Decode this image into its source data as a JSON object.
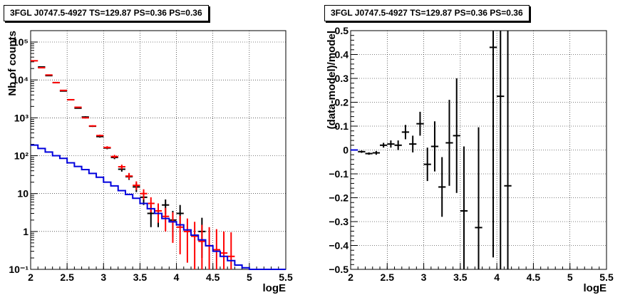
{
  "chart_data": [
    {
      "type": "line",
      "title": "3FGL J0747.5-4927 TS=129.87 PS=0.36 PS=0.36",
      "xlabel": "logE",
      "ylabel": "Nb of counts",
      "xlim": [
        2,
        5.5
      ],
      "ylim": [
        0.1,
        200000
      ],
      "log_y": true,
      "grid": true,
      "x_ticks": [
        "2",
        "2.5",
        "3",
        "3.5",
        "4",
        "4.5",
        "5",
        "5.5"
      ],
      "y_ticks": [
        "10⁻¹",
        "1",
        "10",
        "10²",
        "10³",
        "10⁴",
        "10⁵"
      ],
      "y_tick_values": [
        0.1,
        1,
        10,
        100,
        1000,
        10000,
        100000
      ],
      "series": [
        {
          "color": "#000000",
          "kind": "errorbar",
          "points": [
            {
              "x": 2.15,
              "y": 22000,
              "lo": 21700,
              "hi": 22300
            },
            {
              "x": 2.25,
              "y": 13000,
              "lo": 12800,
              "hi": 13200
            },
            {
              "x": 2.35,
              "y": 8500,
              "lo": 8300,
              "hi": 8700
            },
            {
              "x": 2.45,
              "y": 5100,
              "lo": 5000,
              "hi": 5250
            },
            {
              "x": 2.55,
              "y": 3000,
              "lo": 2900,
              "hi": 3100
            },
            {
              "x": 2.65,
              "y": 1800,
              "lo": 1750,
              "hi": 1850
            },
            {
              "x": 2.75,
              "y": 1050,
              "lo": 1000,
              "hi": 1100
            },
            {
              "x": 2.85,
              "y": 600,
              "lo": 575,
              "hi": 625
            },
            {
              "x": 2.95,
              "y": 320,
              "lo": 300,
              "hi": 340
            },
            {
              "x": 3.05,
              "y": 160,
              "lo": 148,
              "hi": 173
            },
            {
              "x": 3.15,
              "y": 90,
              "lo": 81,
              "hi": 100
            },
            {
              "x": 3.25,
              "y": 44,
              "lo": 38,
              "hi": 51
            },
            {
              "x": 3.35,
              "y": 28,
              "lo": 23,
              "hi": 34
            },
            {
              "x": 3.45,
              "y": 15,
              "lo": 11,
              "hi": 19
            },
            {
              "x": 3.55,
              "y": 8,
              "lo": 5,
              "hi": 11
            },
            {
              "x": 3.65,
              "y": 3,
              "lo": 1.3,
              "hi": 5
            },
            {
              "x": 3.75,
              "y": 3,
              "lo": 1.3,
              "hi": 5
            },
            {
              "x": 3.85,
              "y": 5,
              "lo": 2.8,
              "hi": 7
            },
            {
              "x": 3.95,
              "y": 2,
              "lo": 0.7,
              "hi": 3.5
            },
            {
              "x": 4.05,
              "y": 3,
              "lo": 1.3,
              "hi": 5
            },
            {
              "x": 4.35,
              "y": 1,
              "lo": 0.2,
              "hi": 2.3
            }
          ]
        },
        {
          "color": "#ff0000",
          "kind": "errorbar",
          "points": [
            {
              "x": 2.05,
              "y": 32000,
              "lo": 31700,
              "hi": 32300
            },
            {
              "x": 2.15,
              "y": 21000,
              "lo": 20700,
              "hi": 21300
            },
            {
              "x": 2.25,
              "y": 13500,
              "lo": 13300,
              "hi": 13700
            },
            {
              "x": 2.35,
              "y": 8500,
              "lo": 8300,
              "hi": 8700
            },
            {
              "x": 2.45,
              "y": 5300,
              "lo": 5200,
              "hi": 5450
            },
            {
              "x": 2.55,
              "y": 3000,
              "lo": 2900,
              "hi": 3100
            },
            {
              "x": 2.65,
              "y": 1900,
              "lo": 1850,
              "hi": 1950
            },
            {
              "x": 2.75,
              "y": 1000,
              "lo": 960,
              "hi": 1040
            },
            {
              "x": 2.85,
              "y": 610,
              "lo": 585,
              "hi": 635
            },
            {
              "x": 2.95,
              "y": 340,
              "lo": 320,
              "hi": 360
            },
            {
              "x": 3.05,
              "y": 165,
              "lo": 153,
              "hi": 178
            },
            {
              "x": 3.15,
              "y": 95,
              "lo": 86,
              "hi": 105
            },
            {
              "x": 3.25,
              "y": 51,
              "lo": 44,
              "hi": 58
            },
            {
              "x": 3.35,
              "y": 29,
              "lo": 24,
              "hi": 35
            },
            {
              "x": 3.45,
              "y": 16.5,
              "lo": 12.5,
              "hi": 21
            },
            {
              "x": 3.55,
              "y": 10,
              "lo": 7,
              "hi": 13
            },
            {
              "x": 3.65,
              "y": 5.5,
              "lo": 3.2,
              "hi": 8
            },
            {
              "x": 3.75,
              "y": 3.5,
              "lo": 1.7,
              "hi": 5.5
            },
            {
              "x": 3.85,
              "y": 2.5,
              "lo": 1.0,
              "hi": 4.2
            },
            {
              "x": 3.95,
              "y": 1.8,
              "lo": 0.5,
              "hi": 3.2
            },
            {
              "x": 4.05,
              "y": 1.3,
              "lo": 0.25,
              "hi": 2.6
            },
            {
              "x": 4.15,
              "y": 1.0,
              "lo": 0.15,
              "hi": 2.2
            },
            {
              "x": 4.25,
              "y": 0.75,
              "lo": 0.1,
              "hi": 1.8
            },
            {
              "x": 4.35,
              "y": 0.55,
              "lo": 0.1,
              "hi": 1.5
            },
            {
              "x": 4.45,
              "y": 0.42,
              "lo": 0.1,
              "hi": 1.3
            },
            {
              "x": 4.55,
              "y": 0.33,
              "lo": 0.1,
              "hi": 1.15
            },
            {
              "x": 4.65,
              "y": 0.27,
              "lo": 0.1,
              "hi": 1.0
            },
            {
              "x": 4.75,
              "y": 0.22,
              "lo": 0.1,
              "hi": 0.95
            }
          ]
        },
        {
          "color": "#0000dd",
          "kind": "step",
          "edges": [
            2.0,
            2.1,
            2.2,
            2.3,
            2.4,
            2.5,
            2.6,
            2.7,
            2.8,
            2.9,
            3.0,
            3.1,
            3.2,
            3.3,
            3.4,
            3.5,
            3.6,
            3.7,
            3.8,
            3.9,
            4.0,
            4.1,
            4.2,
            4.3,
            4.4,
            4.5,
            4.6,
            4.7,
            4.8,
            4.9,
            5.0,
            5.5
          ],
          "values": [
            190,
            155,
            125,
            100,
            85,
            65,
            52,
            43,
            34,
            27,
            20,
            16,
            12,
            9.5,
            7.5,
            5.5,
            4,
            3,
            2.2,
            1.8,
            1.5,
            1.1,
            0.8,
            0.6,
            0.42,
            0.3,
            0.22,
            0.17,
            0.13,
            0.11,
            0.1
          ]
        }
      ]
    },
    {
      "type": "scatter",
      "title": "3FGL J0747.5-4927 TS=129.87 PS=0.36 PS=0.36",
      "xlabel": "logE",
      "ylabel": "(data-model)/model",
      "xlim": [
        2,
        5.5
      ],
      "ylim": [
        -0.5,
        0.5
      ],
      "grid": true,
      "x_ticks": [
        "2",
        "2.5",
        "3",
        "3.5",
        "4",
        "4.5",
        "5",
        "5.5"
      ],
      "y_ticks": [
        "−0.5",
        "−0.4",
        "−0.3",
        "−0.2",
        "−0.1",
        "0",
        "0.1",
        "0.2",
        "0.3",
        "0.4",
        "0.5"
      ],
      "y_tick_values": [
        -0.5,
        -0.4,
        -0.3,
        -0.2,
        -0.1,
        0,
        0.1,
        0.2,
        0.3,
        0.4,
        0.5
      ],
      "series": [
        {
          "color": "#0000dd",
          "kind": "errorbar",
          "points": [
            {
              "x": 2.05,
              "y": 0.0,
              "lo": 0.0,
              "hi": 0.0
            }
          ]
        },
        {
          "color": "#000000",
          "kind": "errorbar",
          "points": [
            {
              "x": 2.15,
              "y": -0.007,
              "lo": -0.012,
              "hi": -0.002
            },
            {
              "x": 2.25,
              "y": -0.015,
              "lo": -0.02,
              "hi": -0.01
            },
            {
              "x": 2.35,
              "y": -0.012,
              "lo": -0.02,
              "hi": -0.004
            },
            {
              "x": 2.45,
              "y": 0.02,
              "lo": 0.01,
              "hi": 0.03
            },
            {
              "x": 2.55,
              "y": 0.025,
              "lo": 0.01,
              "hi": 0.04
            },
            {
              "x": 2.65,
              "y": 0.02,
              "lo": 0.0,
              "hi": 0.04
            },
            {
              "x": 2.75,
              "y": 0.075,
              "lo": 0.045,
              "hi": 0.105
            },
            {
              "x": 2.85,
              "y": 0.025,
              "lo": -0.01,
              "hi": 0.06
            },
            {
              "x": 2.95,
              "y": 0.11,
              "lo": 0.06,
              "hi": 0.16
            },
            {
              "x": 3.05,
              "y": -0.06,
              "lo": -0.13,
              "hi": 0.01
            },
            {
              "x": 3.15,
              "y": 0.015,
              "lo": -0.09,
              "hi": 0.12
            },
            {
              "x": 3.25,
              "y": -0.155,
              "lo": -0.28,
              "hi": -0.03
            },
            {
              "x": 3.35,
              "y": 0.03,
              "lo": -0.15,
              "hi": 0.21
            },
            {
              "x": 3.45,
              "y": 0.06,
              "lo": -0.18,
              "hi": 0.3
            },
            {
              "x": 3.55,
              "y": -0.255,
              "lo": -0.5,
              "hi": 0.015
            },
            {
              "x": 3.75,
              "y": -0.325,
              "lo": -0.5,
              "hi": 0.095
            },
            {
              "x": 3.95,
              "y": 0.43,
              "lo": -0.45,
              "hi": 0.5
            },
            {
              "x": 4.05,
              "y": 0.225,
              "lo": -0.5,
              "hi": 0.5
            },
            {
              "x": 4.15,
              "y": -0.15,
              "lo": -0.5,
              "hi": 0.5
            }
          ]
        }
      ]
    }
  ]
}
